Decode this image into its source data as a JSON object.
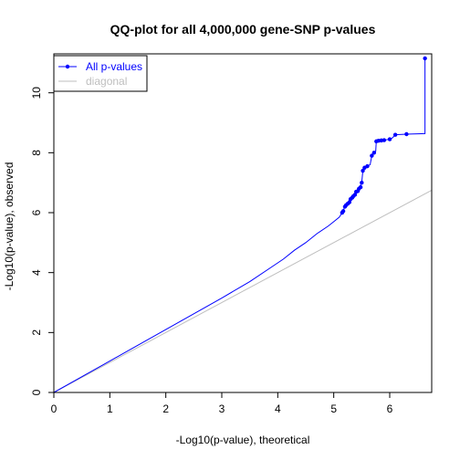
{
  "chart_data": {
    "type": "scatter",
    "title": "QQ-plot for all 4,000,000 gene-SNP p-values",
    "xlabel": "-Log10(p-value), theoretical",
    "ylabel": "-Log10(p-value), observed",
    "xlim": [
      0,
      6.75
    ],
    "ylim": [
      0,
      11.3
    ],
    "x_ticks": [
      0,
      1,
      2,
      3,
      4,
      5,
      6
    ],
    "y_ticks": [
      0,
      2,
      4,
      6,
      8,
      10
    ],
    "grid": false,
    "legend_position": "top-left",
    "legend": [
      {
        "label": "All p-values",
        "color": "#0000ff",
        "kind": "line-point"
      },
      {
        "label": "diagonal",
        "color": "#bebebe",
        "kind": "line"
      }
    ],
    "series": [
      {
        "name": "All p-values",
        "color": "#0000ff",
        "line_points": [
          [
            0,
            0
          ],
          [
            1,
            1.05
          ],
          [
            2,
            2.1
          ],
          [
            3,
            3.15
          ],
          [
            3.5,
            3.7
          ],
          [
            3.9,
            4.2
          ],
          [
            4.1,
            4.45
          ],
          [
            4.3,
            4.75
          ],
          [
            4.5,
            5.0
          ],
          [
            4.7,
            5.3
          ],
          [
            4.9,
            5.55
          ],
          [
            5.0,
            5.7
          ],
          [
            5.1,
            5.85
          ],
          [
            5.15,
            6.0
          ],
          [
            5.2,
            6.2
          ],
          [
            5.25,
            6.3
          ],
          [
            5.3,
            6.45
          ],
          [
            5.35,
            6.55
          ],
          [
            5.4,
            6.7
          ],
          [
            5.45,
            6.8
          ],
          [
            5.5,
            7.0
          ],
          [
            5.52,
            7.4
          ],
          [
            5.55,
            7.5
          ],
          [
            5.6,
            7.55
          ],
          [
            5.65,
            7.6
          ],
          [
            5.68,
            7.9
          ],
          [
            5.72,
            8.0
          ],
          [
            5.75,
            8.05
          ],
          [
            5.76,
            8.38
          ],
          [
            5.8,
            8.4
          ],
          [
            5.85,
            8.41
          ],
          [
            5.9,
            8.42
          ],
          [
            6.0,
            8.45
          ],
          [
            6.05,
            8.5
          ],
          [
            6.1,
            8.6
          ],
          [
            6.3,
            8.62
          ],
          [
            6.63,
            8.64
          ],
          [
            6.63,
            11.15
          ]
        ],
        "points": [
          [
            5.15,
            6.0
          ],
          [
            5.17,
            6.05
          ],
          [
            5.2,
            6.2
          ],
          [
            5.22,
            6.25
          ],
          [
            5.25,
            6.3
          ],
          [
            5.28,
            6.35
          ],
          [
            5.3,
            6.45
          ],
          [
            5.33,
            6.5
          ],
          [
            5.35,
            6.55
          ],
          [
            5.38,
            6.6
          ],
          [
            5.4,
            6.7
          ],
          [
            5.43,
            6.72
          ],
          [
            5.45,
            6.8
          ],
          [
            5.48,
            6.85
          ],
          [
            5.5,
            7.0
          ],
          [
            5.52,
            7.4
          ],
          [
            5.55,
            7.5
          ],
          [
            5.6,
            7.55
          ],
          [
            5.68,
            7.9
          ],
          [
            5.72,
            8.0
          ],
          [
            5.76,
            8.38
          ],
          [
            5.8,
            8.4
          ],
          [
            5.85,
            8.41
          ],
          [
            5.9,
            8.42
          ],
          [
            6.0,
            8.45
          ],
          [
            6.1,
            8.6
          ],
          [
            6.3,
            8.62
          ],
          [
            6.63,
            11.15
          ]
        ]
      },
      {
        "name": "diagonal",
        "color": "#bebebe",
        "line_points": [
          [
            0,
            0
          ],
          [
            6.75,
            6.75
          ]
        ]
      }
    ]
  }
}
